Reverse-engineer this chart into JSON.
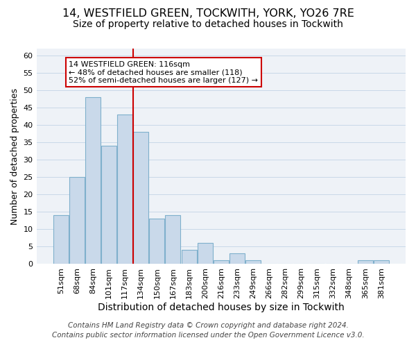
{
  "title": "14, WESTFIELD GREEN, TOCKWITH, YORK, YO26 7RE",
  "subtitle": "Size of property relative to detached houses in Tockwith",
  "xlabel": "Distribution of detached houses by size in Tockwith",
  "ylabel": "Number of detached properties",
  "bar_labels": [
    "51sqm",
    "68sqm",
    "84sqm",
    "101sqm",
    "117sqm",
    "134sqm",
    "150sqm",
    "167sqm",
    "183sqm",
    "200sqm",
    "216sqm",
    "233sqm",
    "249sqm",
    "266sqm",
    "282sqm",
    "299sqm",
    "315sqm",
    "332sqm",
    "348sqm",
    "365sqm",
    "381sqm"
  ],
  "bar_heights": [
    14,
    25,
    48,
    34,
    43,
    38,
    13,
    14,
    4,
    6,
    1,
    3,
    1,
    0,
    0,
    0,
    0,
    0,
    0,
    1,
    1
  ],
  "bar_color": "#c9d9ea",
  "bar_edgecolor": "#7fb0cc",
  "vline_x_idx": 4.5,
  "vline_color": "#cc0000",
  "annotation_text": "14 WESTFIELD GREEN: 116sqm\n← 48% of detached houses are smaller (118)\n52% of semi-detached houses are larger (127) →",
  "annotation_box_facecolor": "#ffffff",
  "annotation_box_edgecolor": "#cc0000",
  "ylim": [
    0,
    62
  ],
  "yticks": [
    0,
    5,
    10,
    15,
    20,
    25,
    30,
    35,
    40,
    45,
    50,
    55,
    60
  ],
  "grid_color": "#c8d8e8",
  "background_color": "#eef2f7",
  "footer_line1": "Contains HM Land Registry data © Crown copyright and database right 2024.",
  "footer_line2": "Contains public sector information licensed under the Open Government Licence v3.0.",
  "title_fontsize": 11.5,
  "subtitle_fontsize": 10,
  "xlabel_fontsize": 10,
  "ylabel_fontsize": 9,
  "tick_fontsize": 8,
  "footer_fontsize": 7.5
}
